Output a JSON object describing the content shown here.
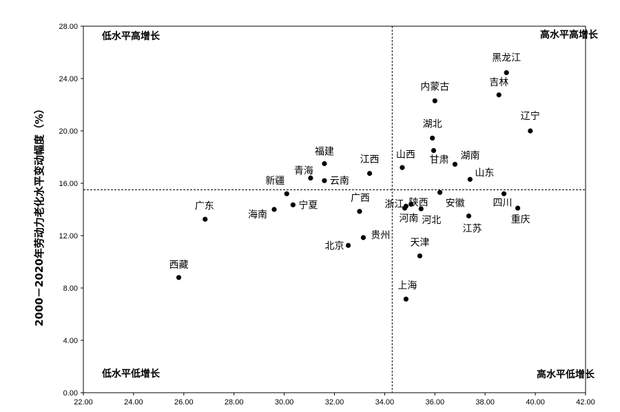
{
  "chart_data": {
    "type": "scatter",
    "title": "",
    "xlabel": "",
    "ylabel": "2000－2020年劳动力老化水平变动幅度（%）",
    "xlim": [
      22,
      42
    ],
    "ylim": [
      0,
      28
    ],
    "x_ticks": [
      "22.00",
      "24.00",
      "26.00",
      "28.00",
      "30.00",
      "32.00",
      "34.00",
      "36.00",
      "38.00",
      "40.00",
      "42.00"
    ],
    "y_ticks": [
      "0.00",
      "4.00",
      "8.00",
      "12.00",
      "16.00",
      "20.00",
      "24.00",
      "28.00"
    ],
    "ref_x": 34.3,
    "ref_y": 15.5,
    "quadrant_labels": {
      "top_left": "低水平高增长",
      "top_right": "高水平高增长",
      "bottom_left": "低水平低增长",
      "bottom_right": "高水平低增长"
    },
    "points": [
      {
        "label": "黑龙江",
        "x": 38.85,
        "y": 24.45
      },
      {
        "label": "吉林",
        "x": 38.55,
        "y": 22.75
      },
      {
        "label": "内蒙古",
        "x": 36.0,
        "y": 22.3
      },
      {
        "label": "辽宁",
        "x": 39.8,
        "y": 20.0
      },
      {
        "label": "湖北",
        "x": 35.9,
        "y": 19.45
      },
      {
        "label": "甘肃",
        "x": 35.95,
        "y": 18.5
      },
      {
        "label": "湖南",
        "x": 36.8,
        "y": 17.45
      },
      {
        "label": "山西",
        "x": 34.7,
        "y": 17.2
      },
      {
        "label": "福建",
        "x": 31.6,
        "y": 17.5
      },
      {
        "label": "江西",
        "x": 33.4,
        "y": 16.75
      },
      {
        "label": "青海",
        "x": 31.05,
        "y": 16.4
      },
      {
        "label": "云南",
        "x": 31.6,
        "y": 16.2
      },
      {
        "label": "山东",
        "x": 37.4,
        "y": 16.3
      },
      {
        "label": "新疆",
        "x": 30.1,
        "y": 15.2
      },
      {
        "label": "宁夏",
        "x": 30.35,
        "y": 14.35
      },
      {
        "label": "海南",
        "x": 29.6,
        "y": 14.0
      },
      {
        "label": "广东",
        "x": 26.85,
        "y": 13.25
      },
      {
        "label": "广西",
        "x": 33.0,
        "y": 13.85
      },
      {
        "label": "浙江",
        "x": 34.8,
        "y": 14.1
      },
      {
        "label": "陕西",
        "x": 35.05,
        "y": 14.4
      },
      {
        "label": "河南",
        "x": 34.85,
        "y": 14.25
      },
      {
        "label": "河北",
        "x": 35.45,
        "y": 14.05
      },
      {
        "label": "安徽",
        "x": 36.2,
        "y": 15.3
      },
      {
        "label": "四川",
        "x": 38.75,
        "y": 15.2
      },
      {
        "label": "重庆",
        "x": 39.3,
        "y": 14.1
      },
      {
        "label": "江苏",
        "x": 37.35,
        "y": 13.5
      },
      {
        "label": "贵州",
        "x": 33.15,
        "y": 11.85
      },
      {
        "label": "北京",
        "x": 32.55,
        "y": 11.25
      },
      {
        "label": "天津",
        "x": 35.4,
        "y": 10.45
      },
      {
        "label": "西藏",
        "x": 25.8,
        "y": 8.8
      },
      {
        "label": "上海",
        "x": 34.85,
        "y": 7.15
      }
    ]
  }
}
